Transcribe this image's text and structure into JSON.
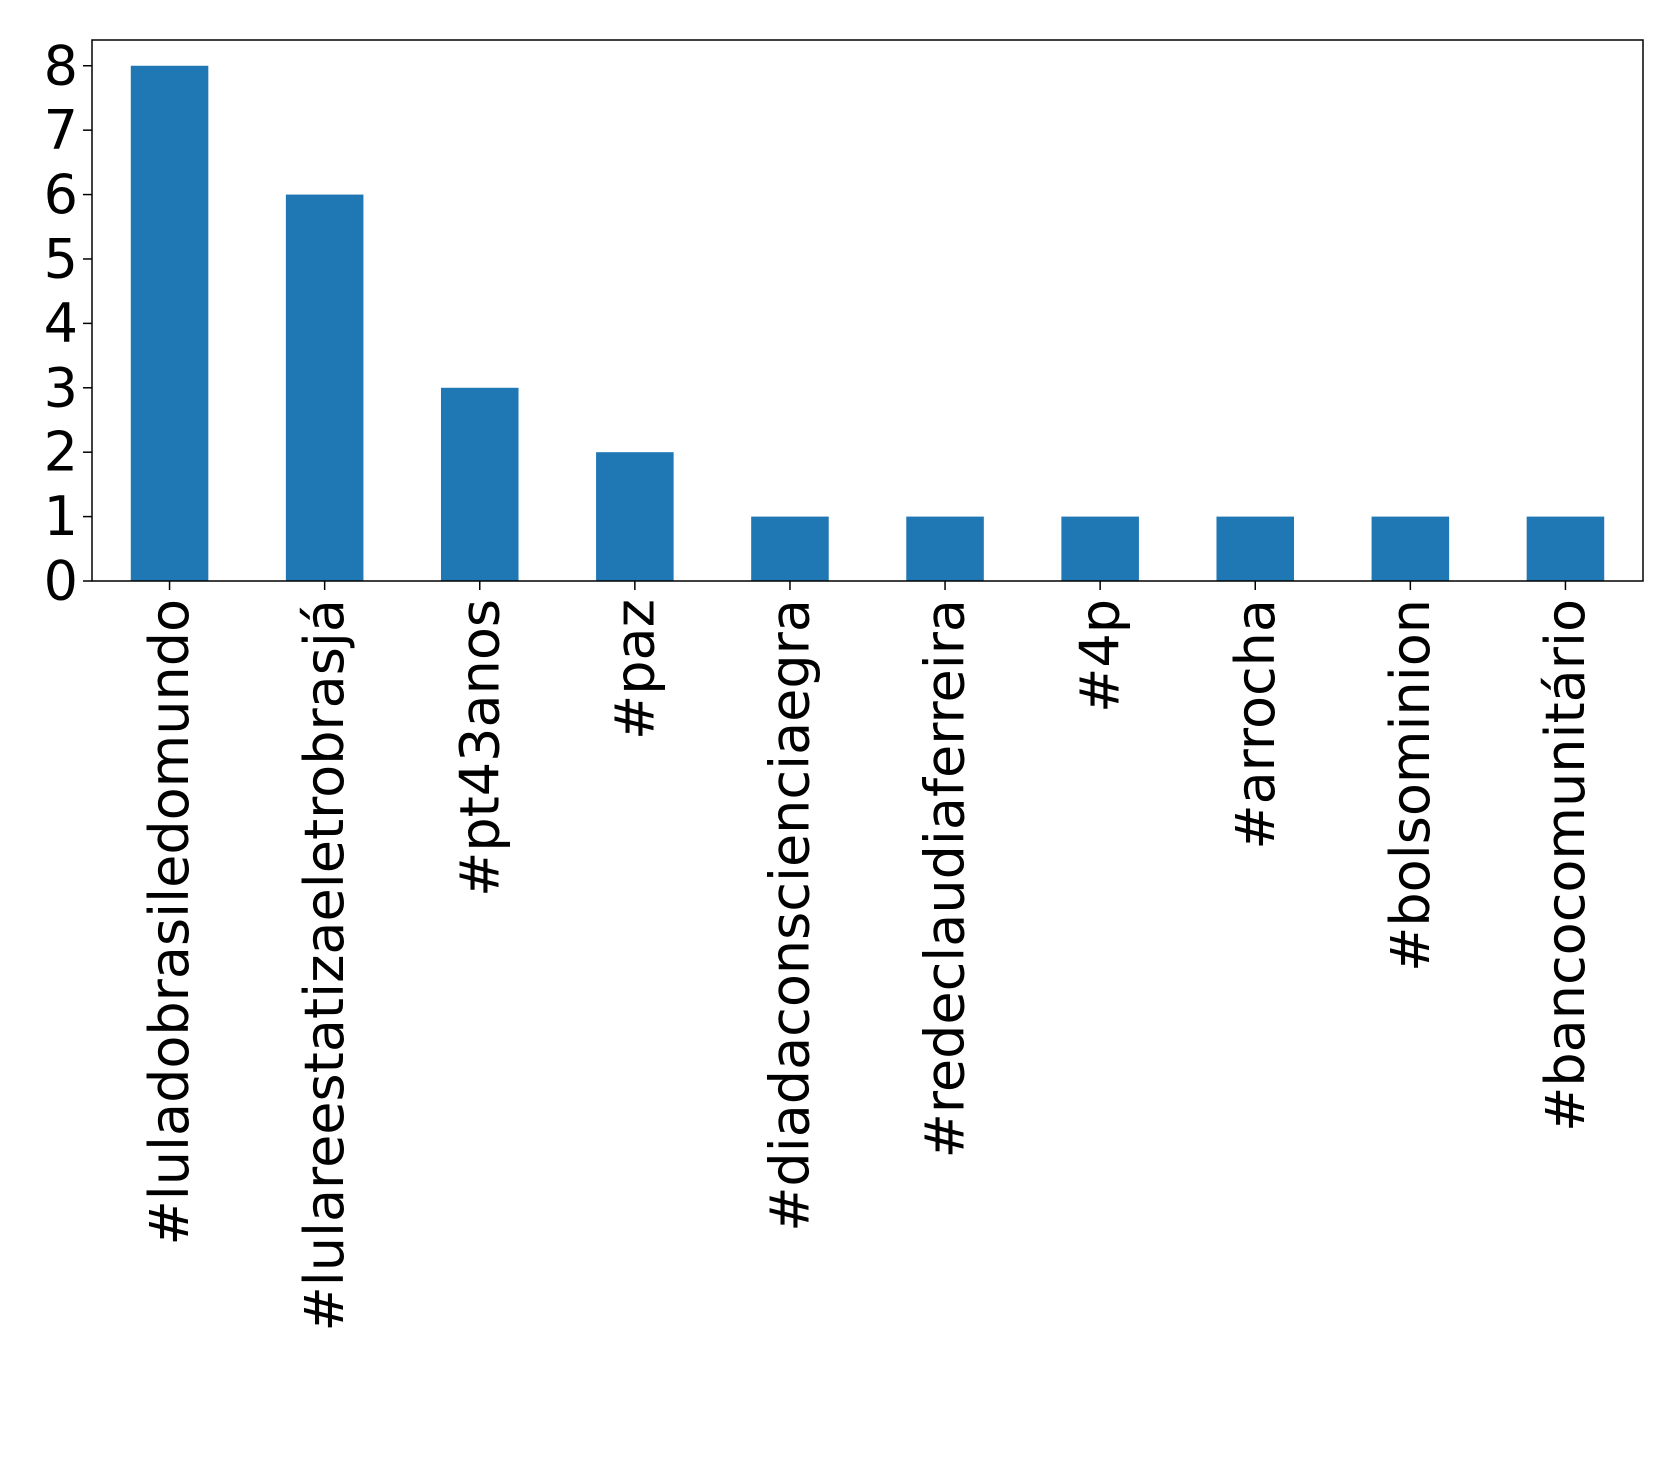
{
  "chart_data": {
    "type": "bar",
    "title": "",
    "xlabel": "",
    "ylabel": "",
    "categories": [
      "#luladobrasiledomundo",
      "#lulareestatizaeletrobrasjá",
      "#pt43anos",
      "#paz",
      "#diadaconscienciaegra",
      "#redeclaudiaferreira",
      "#4p",
      "#arrocha",
      "#bolsominion",
      "#bancocomunitário"
    ],
    "values": [
      8,
      6,
      3,
      2,
      1,
      1,
      1,
      1,
      1,
      1
    ],
    "ylim": [
      0,
      8.4
    ],
    "yticks": [
      0,
      1,
      2,
      3,
      4,
      5,
      6,
      7,
      8
    ],
    "bar_color": "#1f77b4",
    "grid": false,
    "legend": "none"
  }
}
